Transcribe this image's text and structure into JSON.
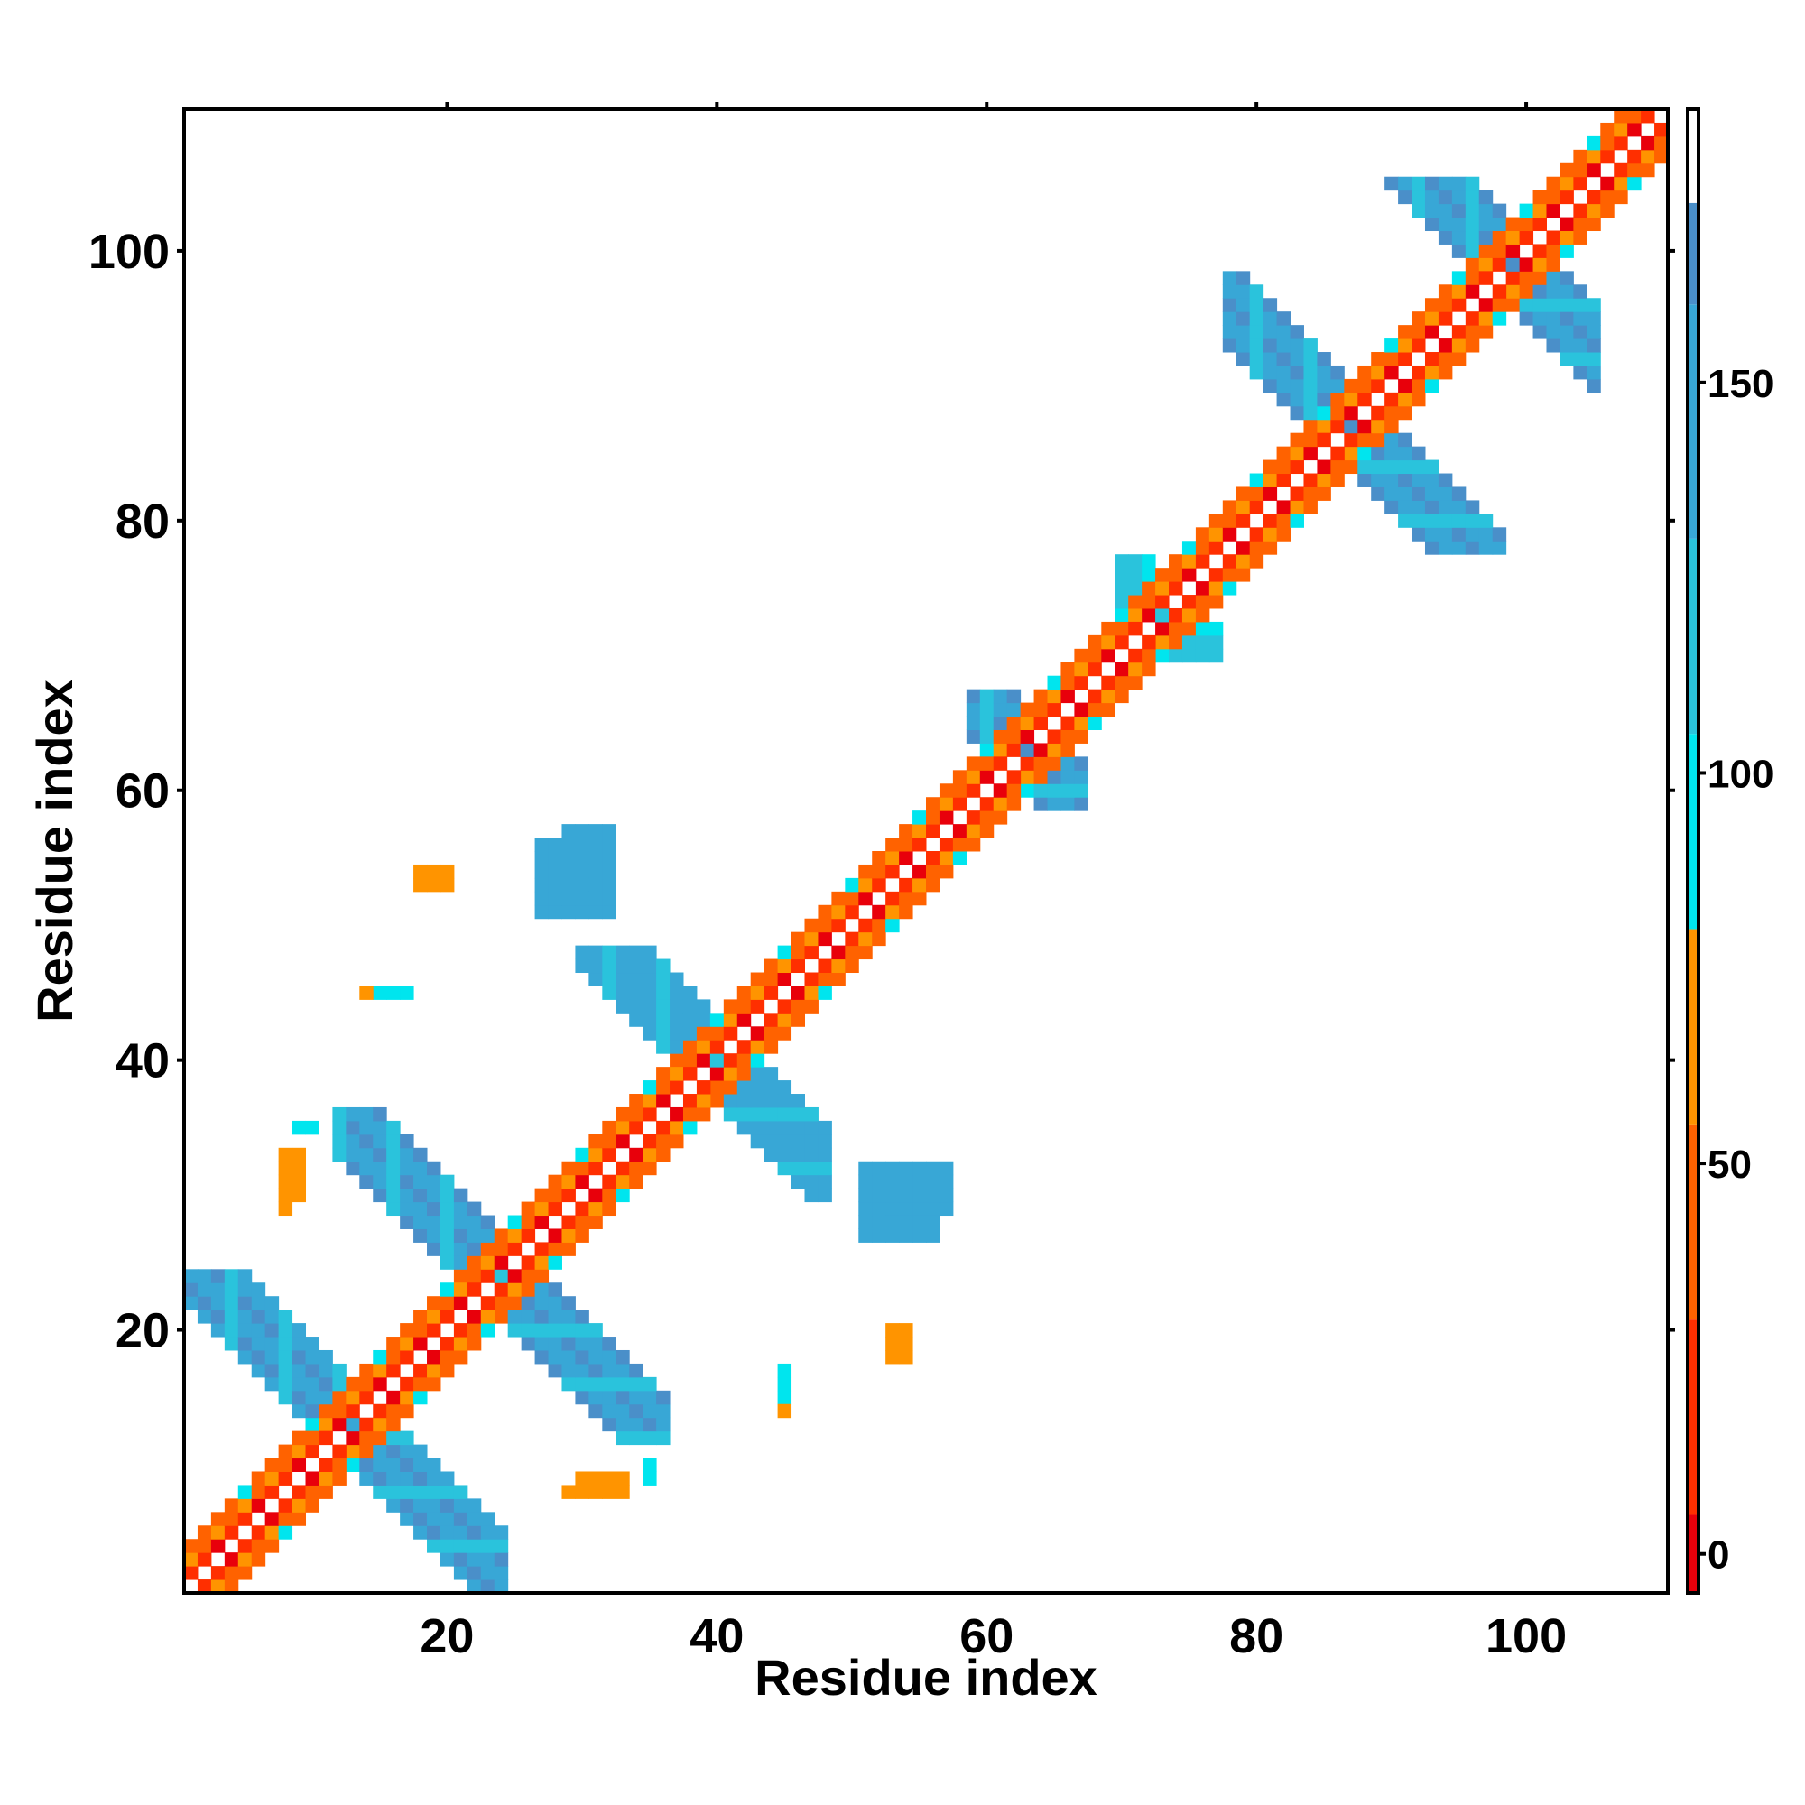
{
  "chart_data": {
    "type": "heatmap",
    "title": "",
    "xlabel": "Residue index",
    "ylabel": "Residue index",
    "xlim": [
      1,
      110
    ],
    "ylim": [
      1,
      110
    ],
    "xticks": [
      20,
      40,
      60,
      80,
      100
    ],
    "yticks": [
      20,
      40,
      60,
      80,
      100
    ],
    "colorbar": {
      "range": [
        -5,
        185
      ],
      "ticks": [
        0,
        50,
        100,
        150
      ],
      "bins": [
        {
          "from": -5,
          "to": 5,
          "color": "#e8000b"
        },
        {
          "from": 5,
          "to": 30,
          "color": "#ff2f00"
        },
        {
          "from": 30,
          "to": 55,
          "color": "#ff6200"
        },
        {
          "from": 55,
          "to": 80,
          "color": "#ff9400"
        },
        {
          "from": 80,
          "to": 105,
          "color": "#00e5ee"
        },
        {
          "from": 105,
          "to": 130,
          "color": "#2ac3dc"
        },
        {
          "from": 130,
          "to": 160,
          "color": "#38a7d6"
        },
        {
          "from": 160,
          "to": 173,
          "color": "#4a8fc9"
        },
        {
          "from": 173,
          "to": 185,
          "color": "#ffffff"
        }
      ]
    },
    "diagonal_band": {
      "from": 1,
      "to": 110,
      "offsets": [
        1,
        2,
        3
      ]
    },
    "cross_regions": [
      {
        "i_from": 1,
        "i_to": 13,
        "j_from": 13,
        "j_to": 24,
        "value": 150
      },
      {
        "i_from": 12,
        "i_to": 24,
        "j_from": 24,
        "j_to": 36,
        "value": 150
      },
      {
        "i_from": 14,
        "i_to": 24,
        "j_from": 24,
        "j_to": 36,
        "value": 150
      },
      {
        "i_from": 25,
        "i_to": 40,
        "j_from": 40,
        "j_to": 47,
        "value": 150
      },
      {
        "i_from": 30,
        "i_to": 40,
        "j_from": 40,
        "j_to": 48,
        "value": 145
      },
      {
        "i_from": 59,
        "i_to": 63,
        "j_from": 63,
        "j_to": 67,
        "value": 150
      },
      {
        "i_from": 70,
        "i_to": 73,
        "j_from": 73,
        "j_to": 77,
        "value": 115
      },
      {
        "i_from": 78,
        "i_to": 87,
        "j_from": 87,
        "j_to": 98,
        "value": 150
      },
      {
        "i_from": 88,
        "i_to": 99,
        "j_from": 99,
        "j_to": 105,
        "value": 150
      }
    ],
    "patches": [
      {
        "i": [
          29,
          32
        ],
        "j": [
          53,
          57
        ],
        "value": 150
      },
      {
        "i": [
          51,
          56
        ],
        "j": [
          27,
          32
        ],
        "value": 150
      },
      {
        "i": [
          8,
          9
        ],
        "j": [
          30,
          33
        ],
        "value": 60
      },
      {
        "i": [
          10,
          10
        ],
        "j": [
          35,
          35
        ],
        "value": 90
      },
      {
        "i": [
          15,
          17
        ],
        "j": [
          45,
          45
        ],
        "value": 60
      },
      {
        "i": [
          16,
          17
        ],
        "j": [
          45,
          45
        ],
        "value": 90
      },
      {
        "i": [
          18,
          19
        ],
        "j": [
          53,
          54
        ],
        "value": 70
      },
      {
        "i": [
          29,
          33
        ],
        "j": [
          8,
          8
        ],
        "value": 55
      },
      {
        "i": [
          33,
          33
        ],
        "j": [
          9,
          9
        ],
        "value": 60
      },
      {
        "i": [
          35,
          35
        ],
        "j": [
          9,
          9
        ],
        "value": 90
      },
      {
        "i": [
          45,
          45
        ],
        "j": [
          15,
          16
        ],
        "value": 90
      },
      {
        "i": [
          45,
          45
        ],
        "j": [
          14,
          14
        ],
        "value": 60
      },
      {
        "i": [
          53,
          54
        ],
        "j": [
          19,
          20
        ],
        "value": 70
      }
    ]
  }
}
